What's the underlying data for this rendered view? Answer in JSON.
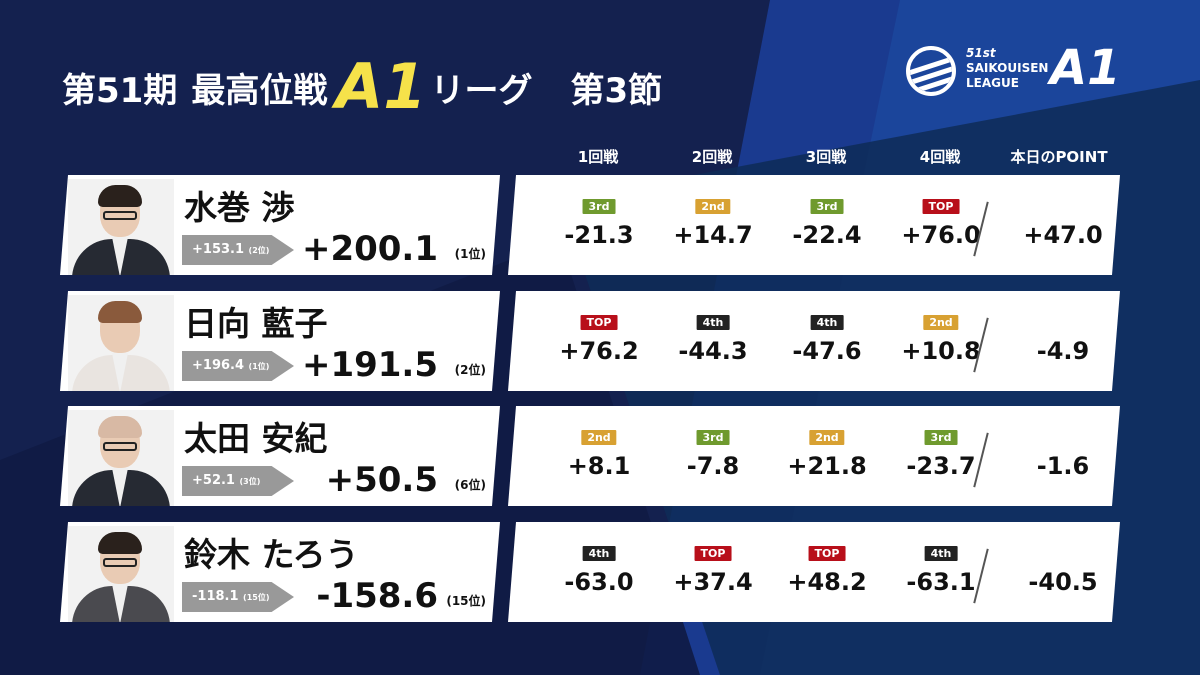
{
  "title": {
    "season": "第51期",
    "event": "最高位戦",
    "league_mark": "A1",
    "league_suffix": "リーグ",
    "section": "第3節"
  },
  "logo": {
    "line1": "51st",
    "line2": "SAIKOUISEN",
    "line3": "LEAGUE",
    "mark": "A1",
    "icon": "league-ball-icon"
  },
  "columns": [
    "1回戦",
    "2回戦",
    "3回戦",
    "4回戦",
    "本日のPOINT"
  ],
  "colors": {
    "background": "#14214f",
    "title_accent": "#f6e24a",
    "TOP": "#b80f1a",
    "2nd": "#d8a132",
    "3rd": "#6f9a2e",
    "4th": "#222222"
  },
  "players": [
    {
      "name": "水巻 渉",
      "previous": "+153.1",
      "previous_rank": "(2位)",
      "total": "+200.1",
      "rank": "(1位)",
      "games": [
        {
          "place": "3rd",
          "score": "-21.3"
        },
        {
          "place": "2nd",
          "score": "+14.7"
        },
        {
          "place": "3rd",
          "score": "-22.4"
        },
        {
          "place": "TOP",
          "score": "+76.0"
        }
      ],
      "day_point": "+47.0"
    },
    {
      "name": "日向 藍子",
      "previous": "+196.4",
      "previous_rank": "(1位)",
      "total": "+191.5",
      "rank": "(2位)",
      "games": [
        {
          "place": "TOP",
          "score": "+76.2"
        },
        {
          "place": "4th",
          "score": "-44.3"
        },
        {
          "place": "4th",
          "score": "-47.6"
        },
        {
          "place": "2nd",
          "score": "+10.8"
        }
      ],
      "day_point": "-4.9"
    },
    {
      "name": "太田 安紀",
      "previous": "+52.1",
      "previous_rank": "(3位)",
      "total": "+50.5",
      "rank": "(6位)",
      "games": [
        {
          "place": "2nd",
          "score": "+8.1"
        },
        {
          "place": "3rd",
          "score": "-7.8"
        },
        {
          "place": "2nd",
          "score": "+21.8"
        },
        {
          "place": "3rd",
          "score": "-23.7"
        }
      ],
      "day_point": "-1.6"
    },
    {
      "name": "鈴木 たろう",
      "previous": "-118.1",
      "previous_rank": "(15位)",
      "total": "-158.6",
      "rank": "(15位)",
      "games": [
        {
          "place": "4th",
          "score": "-63.0"
        },
        {
          "place": "TOP",
          "score": "+37.4"
        },
        {
          "place": "TOP",
          "score": "+48.2"
        },
        {
          "place": "4th",
          "score": "-63.1"
        }
      ],
      "day_point": "-40.5"
    }
  ]
}
